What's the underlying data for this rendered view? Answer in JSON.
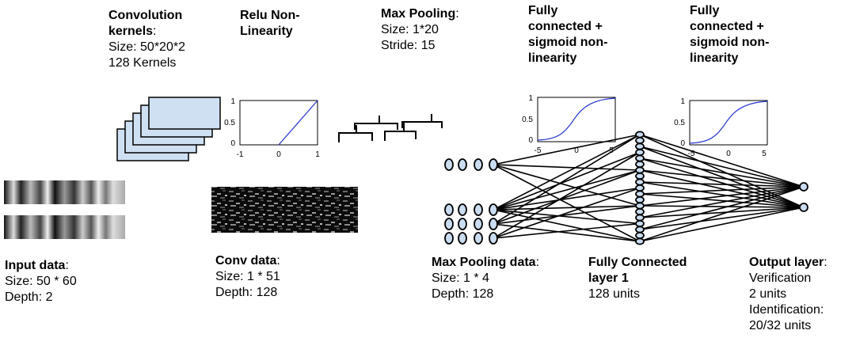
{
  "labels": {
    "conv_kernels": {
      "title": "Convolution",
      "title2": "kernels",
      "title_suffix": ":",
      "line1": "Size: 50*20*2",
      "line2": "128 Kernels"
    },
    "relu": {
      "line1": "Relu Non-",
      "line2": "Linearity"
    },
    "max_pooling": {
      "title": "Max Pooling",
      "title_suffix": ":",
      "line1": "Size: 1*20",
      "line2": "Stride: 15"
    },
    "fc1": {
      "line1": "Fully",
      "line2": "connected +",
      "line3": "sigmoid non-",
      "line4": "linearity"
    },
    "fc2": {
      "line1": "Fully",
      "line2": "connected +",
      "line3": "sigmoid non-",
      "line4": "linearity"
    },
    "input_data": {
      "title": "Input data",
      "title_suffix": ":",
      "line1": "Size: 50 * 60",
      "line2": "Depth: 2"
    },
    "conv_data": {
      "title": "Conv data",
      "title_suffix": ":",
      "line1": "Size: 1 * 51",
      "line2": "Depth: 128"
    },
    "max_pool_data": {
      "title": "Max Pooling data",
      "title_suffix": ":",
      "line1": "Size: 1 * 4",
      "line2": "Depth: 128"
    },
    "fc_layer1": {
      "line1": "Fully Connected",
      "line2": "layer 1",
      "line3": "128 units"
    },
    "output_layer": {
      "title": "Output layer",
      "title_suffix": ":",
      "line1": "Verification",
      "line2": "2 units",
      "line3": "Identification:",
      "line4": "20/32 units"
    }
  },
  "plots": {
    "relu": {
      "xticks": [
        "-1",
        "0",
        "1"
      ],
      "yticks": [
        "0",
        "0.5",
        "1"
      ]
    },
    "sigmoid1": {
      "xticks": [
        "-5",
        "0",
        "5"
      ],
      "yticks": [
        "0",
        "0.5",
        "1"
      ]
    },
    "sigmoid2": {
      "xticks": [
        "-5",
        "0",
        "5"
      ],
      "yticks": [
        "0",
        "0.5",
        "1"
      ]
    }
  },
  "colors": {
    "curve": "#2233cc",
    "kernel_fill": "#cfe0f3",
    "node_fill": "#c9dcf0"
  }
}
